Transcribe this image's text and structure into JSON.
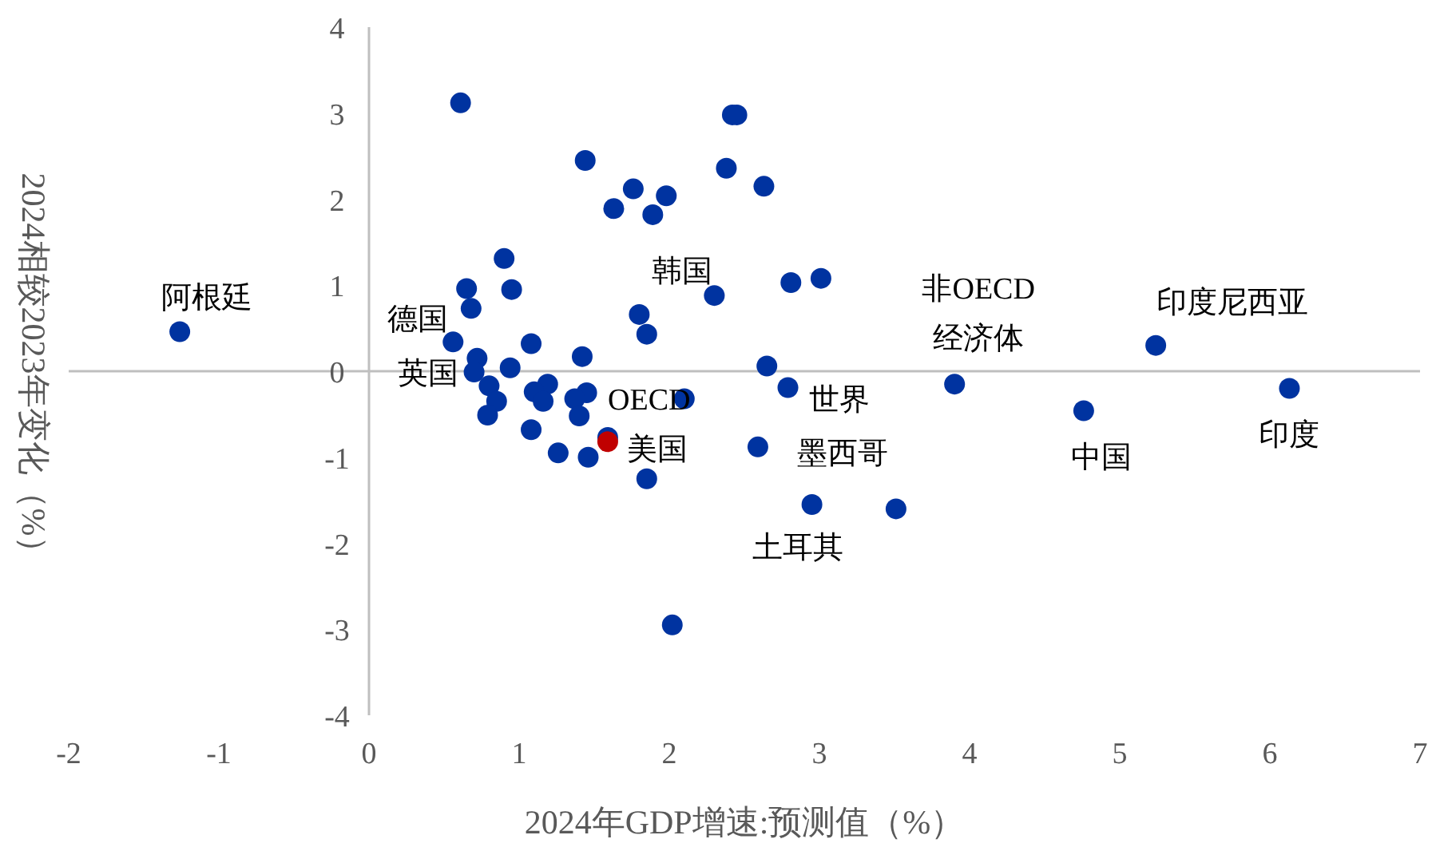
{
  "chart_data": {
    "type": "scatter",
    "xlabel": "2024年GDP增速:预测值（%）",
    "ylabel": "2024相较2023年变化（%）",
    "xlim": [
      -2,
      7
    ],
    "xticks": [
      -2,
      -1,
      0,
      1,
      2,
      3,
      4,
      5,
      6,
      7
    ],
    "ylim": [
      -4,
      4
    ],
    "yticks": [
      -4,
      -3,
      -2,
      -1,
      0,
      1,
      2,
      3,
      4
    ],
    "marker": "circle",
    "series": [
      {
        "color": "#0033a0",
        "x": [
          0.61,
          2.42,
          2.45,
          1.44,
          2.38,
          2.63,
          1.76,
          1.98,
          1.63,
          1.89,
          0.9,
          0.65,
          0.95,
          3.01,
          2.81,
          2.3,
          0.68,
          1.8,
          1.85,
          0.56,
          1.08,
          1.42,
          2.65,
          0.72,
          0.94,
          0.7,
          0.8,
          2.79,
          1.19,
          1.1,
          1.16,
          0.85,
          1.45,
          1.37,
          2.1,
          0.79,
          1.4,
          1.08,
          1.59,
          2.59,
          1.26,
          1.46,
          1.85,
          2.95,
          3.51,
          2.02,
          3.9,
          4.76,
          5.24,
          6.13,
          -1.26
        ],
        "values": [
          3.12,
          2.98,
          2.98,
          2.45,
          2.36,
          2.15,
          2.12,
          2.04,
          1.89,
          1.82,
          1.31,
          0.96,
          0.95,
          1.08,
          1.03,
          0.88,
          0.73,
          0.66,
          0.43,
          0.34,
          0.32,
          0.17,
          0.06,
          0.15,
          0.04,
          -0.01,
          -0.17,
          -0.19,
          -0.15,
          -0.24,
          -0.35,
          -0.35,
          -0.25,
          -0.32,
          -0.32,
          -0.51,
          -0.52,
          -0.68,
          -0.77,
          -0.88,
          -0.95,
          -1.0,
          -1.25,
          -1.55,
          -1.6,
          -2.95,
          -0.15,
          -0.46,
          0.3,
          -0.2,
          0.46
        ]
      },
      {
        "color": "#c00000",
        "x": [
          1.59
        ],
        "values": [
          -0.82
        ]
      }
    ],
    "annotations": [
      {
        "text": "阿根廷",
        "x": -1.26,
        "y": 0.46
      },
      {
        "text": "德国",
        "x": 0.56,
        "y": 0.34
      },
      {
        "text": "英国",
        "x": 0.7,
        "y": -0.01
      },
      {
        "text": "韩国",
        "x": 2.3,
        "y": 0.88
      },
      {
        "text": "OECD",
        "x": 2.1,
        "y": -0.32
      },
      {
        "text": "美国",
        "x": 1.59,
        "y": -0.82
      },
      {
        "text": "世界",
        "x": 2.79,
        "y": -0.19
      },
      {
        "text": "墨西哥",
        "x": 2.59,
        "y": -0.88
      },
      {
        "text": "土耳其",
        "x": 2.95,
        "y": -1.55
      },
      {
        "text": "非OECD\n经济体",
        "x": 3.9,
        "y": -0.15
      },
      {
        "text": "中国",
        "x": 4.76,
        "y": -0.46
      },
      {
        "text": "印度尼西亚",
        "x": 5.24,
        "y": 0.3
      },
      {
        "text": "印度",
        "x": 6.13,
        "y": -0.2
      }
    ]
  }
}
